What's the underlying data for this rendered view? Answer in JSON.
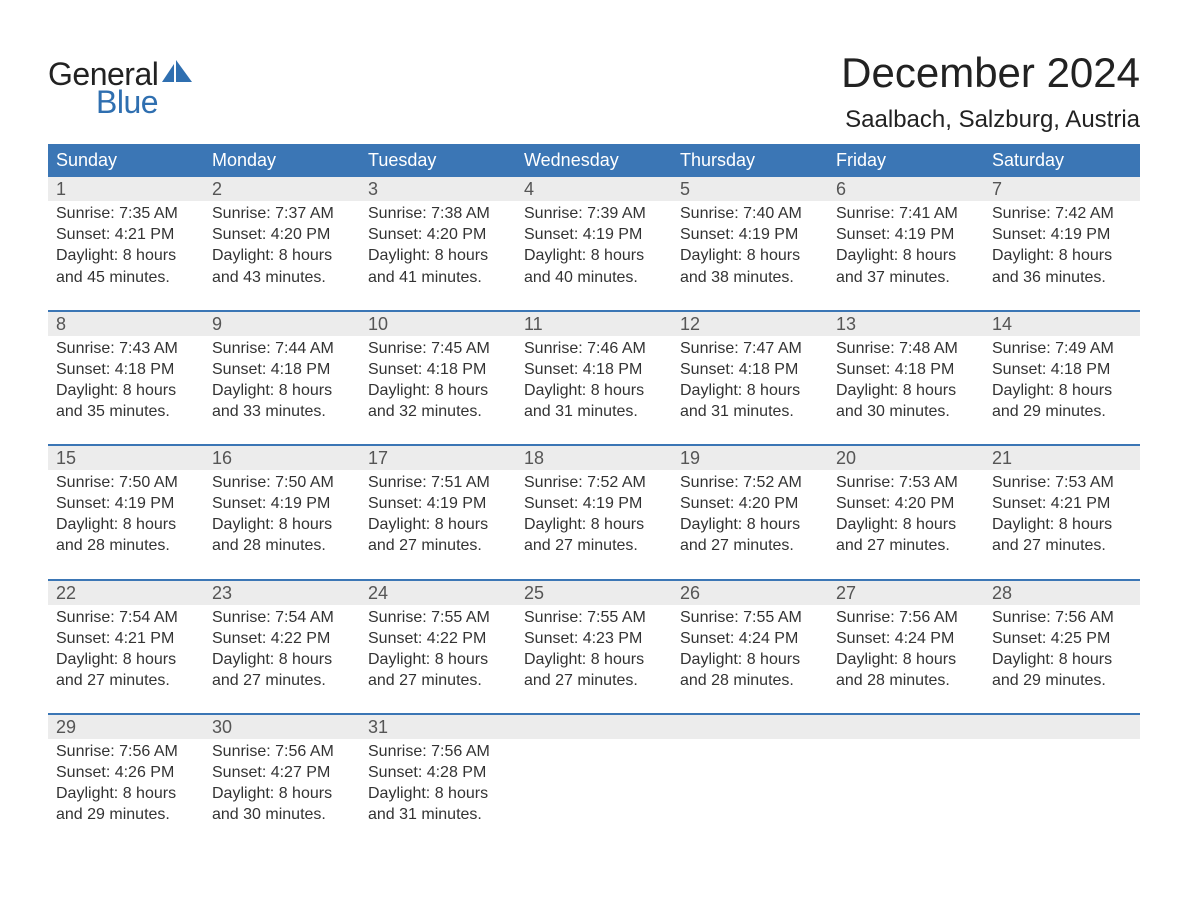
{
  "brand": {
    "word1": "General",
    "word2": "Blue",
    "word1_color": "#222222",
    "word2_color": "#2f6fb0",
    "icon_color": "#2f6fb0"
  },
  "title": "December 2024",
  "location": "Saalbach, Salzburg, Austria",
  "colors": {
    "header_bg": "#3b76b5",
    "header_text": "#ffffff",
    "week_border": "#3b76b5",
    "daynum_bg": "#ececec",
    "text": "#333333",
    "background": "#ffffff"
  },
  "day_headers": [
    "Sunday",
    "Monday",
    "Tuesday",
    "Wednesday",
    "Thursday",
    "Friday",
    "Saturday"
  ],
  "weeks": [
    [
      {
        "num": "1",
        "sunrise": "Sunrise: 7:35 AM",
        "sunset": "Sunset: 4:21 PM",
        "d1": "Daylight: 8 hours",
        "d2": "and 45 minutes."
      },
      {
        "num": "2",
        "sunrise": "Sunrise: 7:37 AM",
        "sunset": "Sunset: 4:20 PM",
        "d1": "Daylight: 8 hours",
        "d2": "and 43 minutes."
      },
      {
        "num": "3",
        "sunrise": "Sunrise: 7:38 AM",
        "sunset": "Sunset: 4:20 PM",
        "d1": "Daylight: 8 hours",
        "d2": "and 41 minutes."
      },
      {
        "num": "4",
        "sunrise": "Sunrise: 7:39 AM",
        "sunset": "Sunset: 4:19 PM",
        "d1": "Daylight: 8 hours",
        "d2": "and 40 minutes."
      },
      {
        "num": "5",
        "sunrise": "Sunrise: 7:40 AM",
        "sunset": "Sunset: 4:19 PM",
        "d1": "Daylight: 8 hours",
        "d2": "and 38 minutes."
      },
      {
        "num": "6",
        "sunrise": "Sunrise: 7:41 AM",
        "sunset": "Sunset: 4:19 PM",
        "d1": "Daylight: 8 hours",
        "d2": "and 37 minutes."
      },
      {
        "num": "7",
        "sunrise": "Sunrise: 7:42 AM",
        "sunset": "Sunset: 4:19 PM",
        "d1": "Daylight: 8 hours",
        "d2": "and 36 minutes."
      }
    ],
    [
      {
        "num": "8",
        "sunrise": "Sunrise: 7:43 AM",
        "sunset": "Sunset: 4:18 PM",
        "d1": "Daylight: 8 hours",
        "d2": "and 35 minutes."
      },
      {
        "num": "9",
        "sunrise": "Sunrise: 7:44 AM",
        "sunset": "Sunset: 4:18 PM",
        "d1": "Daylight: 8 hours",
        "d2": "and 33 minutes."
      },
      {
        "num": "10",
        "sunrise": "Sunrise: 7:45 AM",
        "sunset": "Sunset: 4:18 PM",
        "d1": "Daylight: 8 hours",
        "d2": "and 32 minutes."
      },
      {
        "num": "11",
        "sunrise": "Sunrise: 7:46 AM",
        "sunset": "Sunset: 4:18 PM",
        "d1": "Daylight: 8 hours",
        "d2": "and 31 minutes."
      },
      {
        "num": "12",
        "sunrise": "Sunrise: 7:47 AM",
        "sunset": "Sunset: 4:18 PM",
        "d1": "Daylight: 8 hours",
        "d2": "and 31 minutes."
      },
      {
        "num": "13",
        "sunrise": "Sunrise: 7:48 AM",
        "sunset": "Sunset: 4:18 PM",
        "d1": "Daylight: 8 hours",
        "d2": "and 30 minutes."
      },
      {
        "num": "14",
        "sunrise": "Sunrise: 7:49 AM",
        "sunset": "Sunset: 4:18 PM",
        "d1": "Daylight: 8 hours",
        "d2": "and 29 minutes."
      }
    ],
    [
      {
        "num": "15",
        "sunrise": "Sunrise: 7:50 AM",
        "sunset": "Sunset: 4:19 PM",
        "d1": "Daylight: 8 hours",
        "d2": "and 28 minutes."
      },
      {
        "num": "16",
        "sunrise": "Sunrise: 7:50 AM",
        "sunset": "Sunset: 4:19 PM",
        "d1": "Daylight: 8 hours",
        "d2": "and 28 minutes."
      },
      {
        "num": "17",
        "sunrise": "Sunrise: 7:51 AM",
        "sunset": "Sunset: 4:19 PM",
        "d1": "Daylight: 8 hours",
        "d2": "and 27 minutes."
      },
      {
        "num": "18",
        "sunrise": "Sunrise: 7:52 AM",
        "sunset": "Sunset: 4:19 PM",
        "d1": "Daylight: 8 hours",
        "d2": "and 27 minutes."
      },
      {
        "num": "19",
        "sunrise": "Sunrise: 7:52 AM",
        "sunset": "Sunset: 4:20 PM",
        "d1": "Daylight: 8 hours",
        "d2": "and 27 minutes."
      },
      {
        "num": "20",
        "sunrise": "Sunrise: 7:53 AM",
        "sunset": "Sunset: 4:20 PM",
        "d1": "Daylight: 8 hours",
        "d2": "and 27 minutes."
      },
      {
        "num": "21",
        "sunrise": "Sunrise: 7:53 AM",
        "sunset": "Sunset: 4:21 PM",
        "d1": "Daylight: 8 hours",
        "d2": "and 27 minutes."
      }
    ],
    [
      {
        "num": "22",
        "sunrise": "Sunrise: 7:54 AM",
        "sunset": "Sunset: 4:21 PM",
        "d1": "Daylight: 8 hours",
        "d2": "and 27 minutes."
      },
      {
        "num": "23",
        "sunrise": "Sunrise: 7:54 AM",
        "sunset": "Sunset: 4:22 PM",
        "d1": "Daylight: 8 hours",
        "d2": "and 27 minutes."
      },
      {
        "num": "24",
        "sunrise": "Sunrise: 7:55 AM",
        "sunset": "Sunset: 4:22 PM",
        "d1": "Daylight: 8 hours",
        "d2": "and 27 minutes."
      },
      {
        "num": "25",
        "sunrise": "Sunrise: 7:55 AM",
        "sunset": "Sunset: 4:23 PM",
        "d1": "Daylight: 8 hours",
        "d2": "and 27 minutes."
      },
      {
        "num": "26",
        "sunrise": "Sunrise: 7:55 AM",
        "sunset": "Sunset: 4:24 PM",
        "d1": "Daylight: 8 hours",
        "d2": "and 28 minutes."
      },
      {
        "num": "27",
        "sunrise": "Sunrise: 7:56 AM",
        "sunset": "Sunset: 4:24 PM",
        "d1": "Daylight: 8 hours",
        "d2": "and 28 minutes."
      },
      {
        "num": "28",
        "sunrise": "Sunrise: 7:56 AM",
        "sunset": "Sunset: 4:25 PM",
        "d1": "Daylight: 8 hours",
        "d2": "and 29 minutes."
      }
    ],
    [
      {
        "num": "29",
        "sunrise": "Sunrise: 7:56 AM",
        "sunset": "Sunset: 4:26 PM",
        "d1": "Daylight: 8 hours",
        "d2": "and 29 minutes."
      },
      {
        "num": "30",
        "sunrise": "Sunrise: 7:56 AM",
        "sunset": "Sunset: 4:27 PM",
        "d1": "Daylight: 8 hours",
        "d2": "and 30 minutes."
      },
      {
        "num": "31",
        "sunrise": "Sunrise: 7:56 AM",
        "sunset": "Sunset: 4:28 PM",
        "d1": "Daylight: 8 hours",
        "d2": "and 31 minutes."
      },
      null,
      null,
      null,
      null
    ]
  ]
}
